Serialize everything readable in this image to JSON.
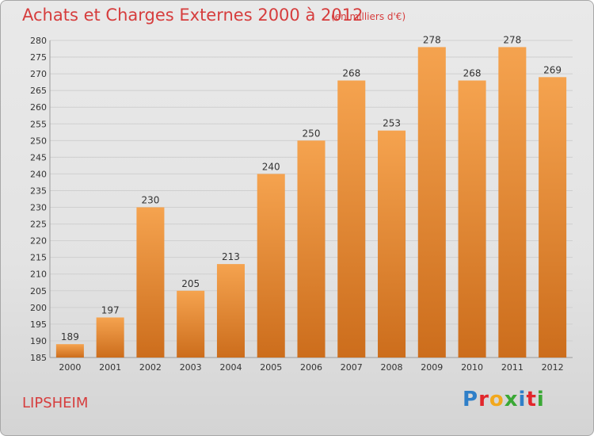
{
  "header": {
    "title": "Achats et Charges Externes 2000 à 2012",
    "subtitle": "(en milliers d'€)"
  },
  "footer": {
    "place": "LIPSHEIM",
    "logo_letters": [
      {
        "char": "P",
        "color": "#2f7fc8"
      },
      {
        "char": "r",
        "color": "#e2262b"
      },
      {
        "char": "o",
        "color": "#f2a81d"
      },
      {
        "char": "x",
        "color": "#3aa835"
      },
      {
        "char": "i",
        "color": "#2f7fc8"
      },
      {
        "char": "t",
        "color": "#e2262b"
      },
      {
        "char": "i",
        "color": "#3aa835"
      }
    ]
  },
  "chart_data": {
    "type": "bar",
    "categories": [
      "2000",
      "2001",
      "2002",
      "2003",
      "2004",
      "2005",
      "2006",
      "2007",
      "2008",
      "2009",
      "2010",
      "2011",
      "2012"
    ],
    "values": [
      189,
      197,
      230,
      205,
      213,
      240,
      250,
      268,
      253,
      278,
      268,
      278,
      269
    ],
    "data_labels": [
      "189",
      "197",
      "230",
      "205",
      "213",
      "240",
      "250",
      "268",
      "253",
      "278",
      "268",
      "278",
      "269"
    ],
    "y_ticks": [
      185,
      190,
      195,
      200,
      205,
      210,
      215,
      220,
      225,
      230,
      235,
      240,
      245,
      250,
      255,
      260,
      265,
      270,
      275,
      280
    ],
    "ylim": [
      185,
      280
    ],
    "grid": true,
    "bar_color_light": "#f5a34f",
    "bar_color_dark": "#cc6d1c",
    "grid_color": "#cfcfcf",
    "text_color": "#333333"
  }
}
